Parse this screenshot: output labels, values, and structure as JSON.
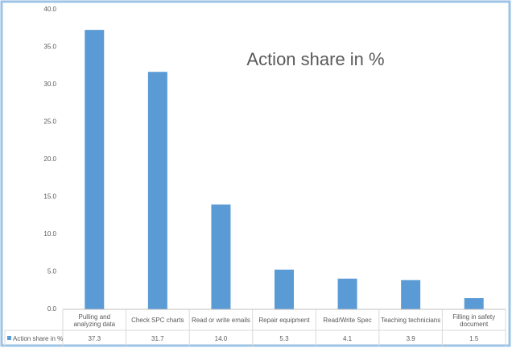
{
  "chart_data": {
    "type": "bar",
    "title": "Action share in %",
    "categories": [
      "Pulling and analyzing data",
      "Check SPC charts",
      "Read or write emails",
      "Repair equipment",
      "Read/Write Spec",
      "Teaching technicians",
      "Filling in safety document"
    ],
    "series": [
      {
        "name": "Action share in %",
        "color": "#5b9bd5",
        "values": [
          37.3,
          31.7,
          14.0,
          5.3,
          4.1,
          3.9,
          1.5
        ],
        "value_labels": [
          "37.3",
          "31.7",
          "14.0",
          "5.3",
          "4.1",
          "3.9",
          "1.5"
        ]
      }
    ],
    "ylim": [
      0,
      40
    ],
    "yticks": [
      {
        "value": 0,
        "label": "0.0"
      },
      {
        "value": 5,
        "label": "5.0"
      },
      {
        "value": 10,
        "label": "10.0"
      },
      {
        "value": 15,
        "label": "15.0"
      },
      {
        "value": 20,
        "label": "20.0"
      },
      {
        "value": 25,
        "label": "25.0"
      },
      {
        "value": 30,
        "label": "30.0"
      },
      {
        "value": 35,
        "label": "35.0"
      },
      {
        "value": 40,
        "label": "40.0"
      }
    ],
    "grid": false
  }
}
